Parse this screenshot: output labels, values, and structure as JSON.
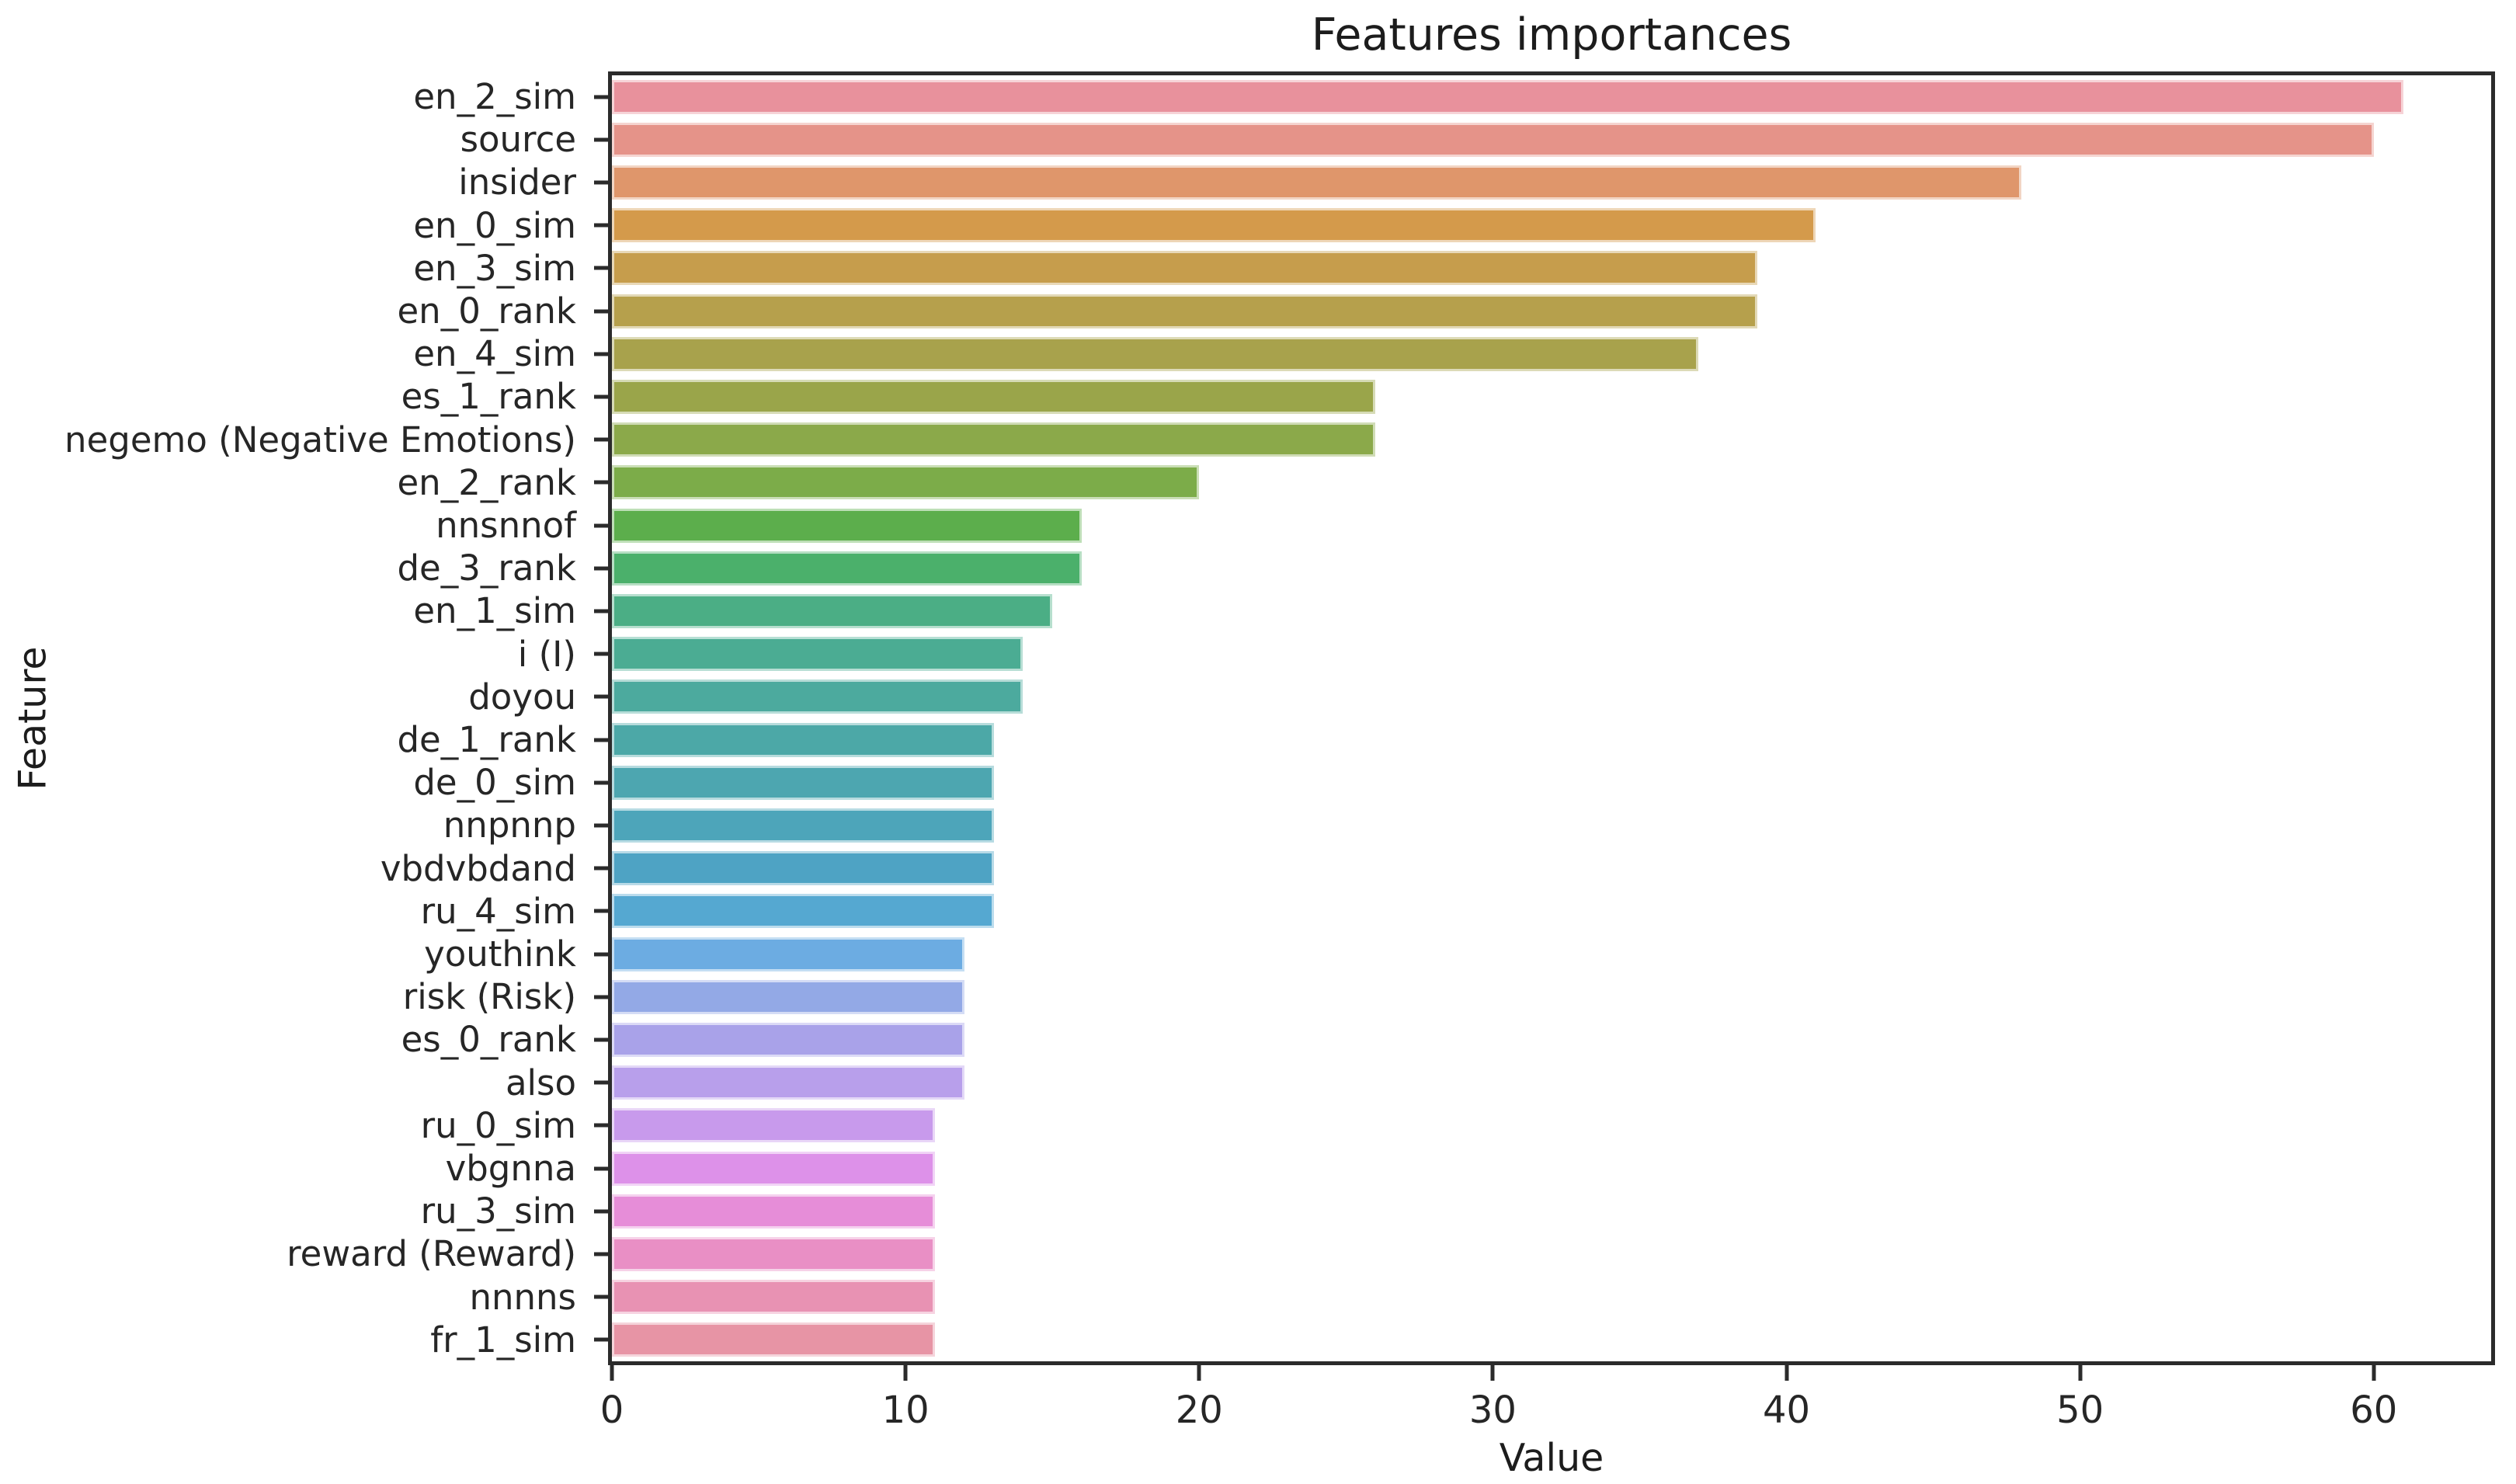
{
  "chart_data": {
    "type": "bar",
    "orientation": "horizontal",
    "title": "Features importances",
    "xlabel": "Value",
    "ylabel": "Feature",
    "xlim": [
      0,
      64
    ],
    "xticks": [
      0,
      10,
      20,
      30,
      40,
      50,
      60
    ],
    "grid": false,
    "legend": "none",
    "categories": [
      "en_2_sim",
      "source",
      "insider",
      "en_0_sim",
      "en_3_sim",
      "en_0_rank",
      "en_4_sim",
      "es_1_rank",
      "negemo (Negative Emotions)",
      "en_2_rank",
      "nnsnnof",
      "de_3_rank",
      "en_1_sim",
      "i (I)",
      "doyou",
      "de_1_rank",
      "de_0_sim",
      "nnpnnp",
      "vbdvbdand",
      "ru_4_sim",
      "youthink",
      "risk (Risk)",
      "es_0_rank",
      "also",
      "ru_0_sim",
      "vbgnna",
      "ru_3_sim",
      "reward (Reward)",
      "nnnns",
      "fr_1_sim"
    ],
    "values": [
      61,
      60,
      48,
      41,
      39,
      39,
      37,
      26,
      26,
      20,
      16,
      16,
      15,
      14,
      14,
      13,
      13,
      13,
      13,
      13,
      12,
      12,
      12,
      12,
      11,
      11,
      11,
      11,
      11,
      11
    ],
    "bar_colors": [
      "#e8919c",
      "#e59389",
      "#df966b",
      "#d49a4b",
      "#c69d4c",
      "#b6a04c",
      "#a8a24c",
      "#9aa54a",
      "#8ba94a",
      "#7cac49",
      "#5cae4c",
      "#4bb06b",
      "#4bae85",
      "#4bac93",
      "#4caa9e",
      "#4ca8a7",
      "#4da6b0",
      "#4da5ba",
      "#4ea3c4",
      "#55a8d1",
      "#6cace2",
      "#93a9e6",
      "#a9a2e9",
      "#b89feb",
      "#c89aec",
      "#dd91e9",
      "#e68dd8",
      "#e98fc5",
      "#e892b3",
      "#e794a5"
    ],
    "spine_color": "#2b2b2b",
    "text_color": "#262626"
  }
}
